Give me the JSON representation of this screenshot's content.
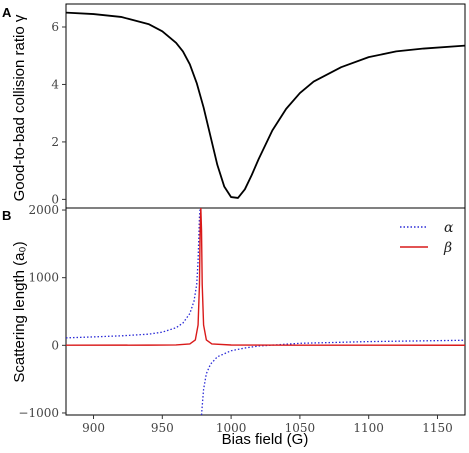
{
  "chart_data": [
    {
      "panel_label": "A",
      "type": "line",
      "ylabel": "Good-to-bad collision ratio γ",
      "xlim": [
        880,
        1170
      ],
      "ylim": [
        -0.3,
        6.8
      ],
      "yticks": [
        0,
        2,
        4,
        6
      ],
      "series": [
        {
          "color": "#000000",
          "style": "solid",
          "x": [
            880,
            900,
            920,
            940,
            950,
            960,
            965,
            970,
            975,
            980,
            985,
            990,
            995,
            1000,
            1005,
            1010,
            1015,
            1020,
            1025,
            1030,
            1040,
            1050,
            1060,
            1080,
            1100,
            1120,
            1140,
            1170
          ],
          "y": [
            6.5,
            6.45,
            6.35,
            6.1,
            5.85,
            5.45,
            5.15,
            4.7,
            4.05,
            3.2,
            2.2,
            1.2,
            0.45,
            0.08,
            0.05,
            0.35,
            0.85,
            1.4,
            1.9,
            2.4,
            3.15,
            3.7,
            4.1,
            4.6,
            4.95,
            5.15,
            5.25,
            5.35
          ]
        }
      ]
    },
    {
      "panel_label": "B",
      "type": "line",
      "xlabel": "Bias field (G)",
      "ylabel": "Scattering length (a₀)",
      "xlim": [
        880,
        1170
      ],
      "ylim": [
        -1030,
        2030
      ],
      "yticks": [
        -1000,
        0,
        1000,
        2000
      ],
      "xticks": [
        900,
        950,
        1000,
        1050,
        1100,
        1150
      ],
      "legend_position": "top-right",
      "series": [
        {
          "name": "α",
          "color": "#2b2bd6",
          "style": "dotted",
          "resonance": 978,
          "x": [
            880,
            900,
            920,
            940,
            950,
            960,
            965,
            970,
            973,
            975,
            976,
            977,
            977.5,
            978.5,
            979,
            980,
            982,
            985,
            990,
            1000,
            1010,
            1020,
            1050,
            1100,
            1170
          ],
          "y": [
            110,
            125,
            140,
            165,
            195,
            260,
            330,
            470,
            650,
            900,
            1250,
            1900,
            2030,
            -1030,
            -900,
            -650,
            -420,
            -280,
            -170,
            -80,
            -40,
            -10,
            30,
            55,
            75
          ]
        },
        {
          "name": "β",
          "color": "#d91a1a",
          "style": "solid",
          "x": [
            880,
            940,
            960,
            970,
            974,
            976,
            977,
            977.5,
            978,
            978.5,
            979,
            980,
            982,
            986,
            1000,
            1050,
            1170
          ],
          "y": [
            2,
            3,
            6,
            20,
            80,
            300,
            900,
            1700,
            2030,
            1700,
            900,
            300,
            80,
            20,
            5,
            2,
            1
          ]
        }
      ]
    }
  ]
}
